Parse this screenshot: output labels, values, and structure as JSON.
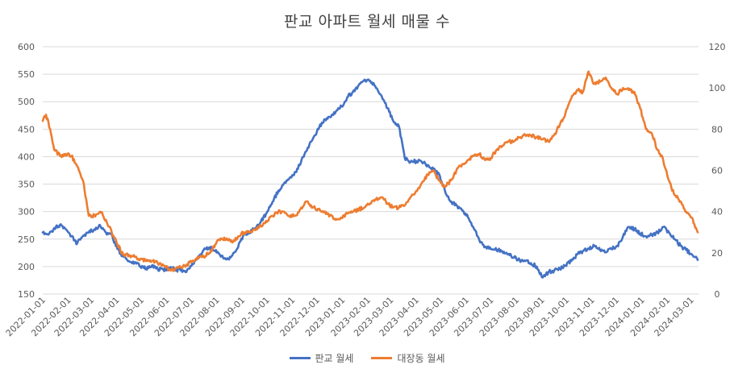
{
  "chart_data": {
    "type": "line",
    "title": "판교 아파트 월세 매물 수",
    "left_axis": {
      "min": 150,
      "max": 600,
      "step": 50,
      "ticks": [
        "150",
        "200",
        "250",
        "300",
        "350",
        "400",
        "450",
        "500",
        "550",
        "600"
      ]
    },
    "right_axis": {
      "min": 0,
      "max": 120,
      "step": 20,
      "ticks": [
        "0",
        "20",
        "40",
        "60",
        "80",
        "100",
        "120"
      ]
    },
    "x_range": [
      "2022-01-01",
      "2024-03-10"
    ],
    "x_ticks": [
      "2022-01-01",
      "2022-02-01",
      "2022-03-01",
      "2022-04-01",
      "2022-05-01",
      "2022-06-01",
      "2022-07-01",
      "2022-08-01",
      "2022-09-01",
      "2022-10-01",
      "2022-11-01",
      "2022-12-01",
      "2023-01-01",
      "2023-02-01",
      "2023-03-01",
      "2023-04-01",
      "2023-05-01",
      "2023-06-01",
      "2023-07-01",
      "2023-08-01",
      "2023-09-01",
      "2023-10-01",
      "2023-11-01",
      "2023-12-01",
      "2024-01-01",
      "2024-02-01",
      "2024-03-01"
    ],
    "grid": true,
    "legend_position": "bottom",
    "series": [
      {
        "name": "판교 월세",
        "axis": "left",
        "color": "#4472c4",
        "points": [
          [
            "2022-01-01",
            262
          ],
          [
            "2022-01-08",
            258
          ],
          [
            "2022-01-15",
            270
          ],
          [
            "2022-01-22",
            276
          ],
          [
            "2022-01-29",
            268
          ],
          [
            "2022-02-05",
            255
          ],
          [
            "2022-02-12",
            242
          ],
          [
            "2022-02-19",
            256
          ],
          [
            "2022-02-26",
            262
          ],
          [
            "2022-03-05",
            268
          ],
          [
            "2022-03-12",
            275
          ],
          [
            "2022-03-19",
            262
          ],
          [
            "2022-03-26",
            258
          ],
          [
            "2022-04-02",
            232
          ],
          [
            "2022-04-09",
            218
          ],
          [
            "2022-04-16",
            210
          ],
          [
            "2022-04-23",
            208
          ],
          [
            "2022-04-30",
            200
          ],
          [
            "2022-05-07",
            197
          ],
          [
            "2022-05-14",
            202
          ],
          [
            "2022-05-21",
            196
          ],
          [
            "2022-05-28",
            194
          ],
          [
            "2022-06-04",
            198
          ],
          [
            "2022-06-11",
            195
          ],
          [
            "2022-06-18",
            193
          ],
          [
            "2022-06-25",
            190
          ],
          [
            "2022-07-02",
            205
          ],
          [
            "2022-07-09",
            218
          ],
          [
            "2022-07-16",
            230
          ],
          [
            "2022-07-23",
            235
          ],
          [
            "2022-07-30",
            228
          ],
          [
            "2022-08-06",
            218
          ],
          [
            "2022-08-13",
            213
          ],
          [
            "2022-08-20",
            220
          ],
          [
            "2022-08-27",
            235
          ],
          [
            "2022-09-03",
            258
          ],
          [
            "2022-09-10",
            262
          ],
          [
            "2022-09-17",
            270
          ],
          [
            "2022-09-24",
            283
          ],
          [
            "2022-10-01",
            298
          ],
          [
            "2022-10-08",
            318
          ],
          [
            "2022-10-15",
            338
          ],
          [
            "2022-10-22",
            352
          ],
          [
            "2022-10-29",
            362
          ],
          [
            "2022-11-05",
            372
          ],
          [
            "2022-11-12",
            392
          ],
          [
            "2022-11-19",
            412
          ],
          [
            "2022-11-26",
            432
          ],
          [
            "2022-12-03",
            450
          ],
          [
            "2022-12-10",
            468
          ],
          [
            "2022-12-17",
            472
          ],
          [
            "2022-12-24",
            482
          ],
          [
            "2022-12-31",
            492
          ],
          [
            "2023-01-07",
            508
          ],
          [
            "2023-01-14",
            518
          ],
          [
            "2023-01-21",
            530
          ],
          [
            "2023-01-28",
            540
          ],
          [
            "2023-02-04",
            538
          ],
          [
            "2023-02-11",
            525
          ],
          [
            "2023-02-18",
            510
          ],
          [
            "2023-02-25",
            488
          ],
          [
            "2023-03-04",
            465
          ],
          [
            "2023-03-11",
            455
          ],
          [
            "2023-03-18",
            398
          ],
          [
            "2023-03-25",
            390
          ],
          [
            "2023-04-01",
            392
          ],
          [
            "2023-04-08",
            390
          ],
          [
            "2023-04-15",
            385
          ],
          [
            "2023-04-22",
            378
          ],
          [
            "2023-04-29",
            368
          ],
          [
            "2023-05-06",
            338
          ],
          [
            "2023-05-13",
            318
          ],
          [
            "2023-05-20",
            312
          ],
          [
            "2023-05-27",
            302
          ],
          [
            "2023-06-03",
            290
          ],
          [
            "2023-06-10",
            270
          ],
          [
            "2023-06-17",
            248
          ],
          [
            "2023-06-24",
            236
          ],
          [
            "2023-07-01",
            232
          ],
          [
            "2023-07-08",
            230
          ],
          [
            "2023-07-15",
            228
          ],
          [
            "2023-07-22",
            222
          ],
          [
            "2023-07-29",
            216
          ],
          [
            "2023-08-05",
            212
          ],
          [
            "2023-08-12",
            210
          ],
          [
            "2023-08-19",
            206
          ],
          [
            "2023-08-26",
            200
          ],
          [
            "2023-09-02",
            180
          ],
          [
            "2023-09-09",
            190
          ],
          [
            "2023-09-16",
            192
          ],
          [
            "2023-09-23",
            196
          ],
          [
            "2023-09-30",
            202
          ],
          [
            "2023-10-07",
            210
          ],
          [
            "2023-10-14",
            222
          ],
          [
            "2023-10-21",
            228
          ],
          [
            "2023-10-28",
            233
          ],
          [
            "2023-11-04",
            238
          ],
          [
            "2023-11-11",
            230
          ],
          [
            "2023-11-18",
            226
          ],
          [
            "2023-11-25",
            232
          ],
          [
            "2023-12-02",
            238
          ],
          [
            "2023-12-09",
            255
          ],
          [
            "2023-12-16",
            272
          ],
          [
            "2023-12-23",
            268
          ],
          [
            "2023-12-30",
            260
          ],
          [
            "2024-01-06",
            255
          ],
          [
            "2024-01-13",
            258
          ],
          [
            "2024-01-20",
            262
          ],
          [
            "2024-01-27",
            272
          ],
          [
            "2024-02-03",
            262
          ],
          [
            "2024-02-10",
            250
          ],
          [
            "2024-02-17",
            238
          ],
          [
            "2024-02-24",
            230
          ],
          [
            "2024-03-02",
            222
          ],
          [
            "2024-03-09",
            212
          ]
        ]
      },
      {
        "name": "대장동 월세",
        "axis": "right",
        "color": "#ed7d31",
        "points": [
          [
            "2022-01-01",
            84
          ],
          [
            "2022-01-05",
            87
          ],
          [
            "2022-01-10",
            80
          ],
          [
            "2022-01-15",
            70
          ],
          [
            "2022-01-22",
            67
          ],
          [
            "2022-01-29",
            68
          ],
          [
            "2022-02-05",
            67
          ],
          [
            "2022-02-12",
            62
          ],
          [
            "2022-02-19",
            55
          ],
          [
            "2022-02-26",
            38
          ],
          [
            "2022-03-05",
            38
          ],
          [
            "2022-03-12",
            40
          ],
          [
            "2022-03-19",
            36
          ],
          [
            "2022-03-26",
            30
          ],
          [
            "2022-04-02",
            24
          ],
          [
            "2022-04-09",
            19
          ],
          [
            "2022-04-16",
            19
          ],
          [
            "2022-04-23",
            18
          ],
          [
            "2022-04-30",
            17
          ],
          [
            "2022-05-07",
            16
          ],
          [
            "2022-05-14",
            16
          ],
          [
            "2022-05-21",
            15
          ],
          [
            "2022-05-28",
            14
          ],
          [
            "2022-06-04",
            12
          ],
          [
            "2022-06-11",
            12
          ],
          [
            "2022-06-18",
            13
          ],
          [
            "2022-06-25",
            14
          ],
          [
            "2022-07-02",
            16
          ],
          [
            "2022-07-09",
            18
          ],
          [
            "2022-07-16",
            18
          ],
          [
            "2022-07-23",
            20
          ],
          [
            "2022-07-30",
            24
          ],
          [
            "2022-08-06",
            27
          ],
          [
            "2022-08-13",
            27
          ],
          [
            "2022-08-20",
            25
          ],
          [
            "2022-08-27",
            28
          ],
          [
            "2022-09-03",
            30
          ],
          [
            "2022-09-10",
            30
          ],
          [
            "2022-09-17",
            31
          ],
          [
            "2022-09-24",
            33
          ],
          [
            "2022-10-01",
            35
          ],
          [
            "2022-10-08",
            38
          ],
          [
            "2022-10-15",
            40
          ],
          [
            "2022-10-22",
            40
          ],
          [
            "2022-10-29",
            38
          ],
          [
            "2022-11-05",
            38
          ],
          [
            "2022-11-12",
            42
          ],
          [
            "2022-11-19",
            45
          ],
          [
            "2022-11-26",
            42
          ],
          [
            "2022-12-03",
            41
          ],
          [
            "2022-12-10",
            40
          ],
          [
            "2022-12-17",
            38
          ],
          [
            "2022-12-24",
            36
          ],
          [
            "2022-12-31",
            37
          ],
          [
            "2023-01-07",
            39
          ],
          [
            "2023-01-14",
            40
          ],
          [
            "2023-01-21",
            41
          ],
          [
            "2023-01-28",
            42
          ],
          [
            "2023-02-04",
            44
          ],
          [
            "2023-02-11",
            46
          ],
          [
            "2023-02-18",
            47
          ],
          [
            "2023-02-25",
            44
          ],
          [
            "2023-03-04",
            42
          ],
          [
            "2023-03-11",
            42
          ],
          [
            "2023-03-18",
            43
          ],
          [
            "2023-03-25",
            47
          ],
          [
            "2023-04-01",
            50
          ],
          [
            "2023-04-08",
            54
          ],
          [
            "2023-04-15",
            58
          ],
          [
            "2023-04-22",
            60
          ],
          [
            "2023-04-29",
            55
          ],
          [
            "2023-05-06",
            52
          ],
          [
            "2023-05-13",
            55
          ],
          [
            "2023-05-20",
            60
          ],
          [
            "2023-05-27",
            63
          ],
          [
            "2023-06-03",
            65
          ],
          [
            "2023-06-10",
            67
          ],
          [
            "2023-06-17",
            68
          ],
          [
            "2023-06-24",
            65
          ],
          [
            "2023-07-01",
            66
          ],
          [
            "2023-07-08",
            70
          ],
          [
            "2023-07-15",
            72
          ],
          [
            "2023-07-22",
            74
          ],
          [
            "2023-07-29",
            74
          ],
          [
            "2023-08-05",
            76
          ],
          [
            "2023-08-12",
            77
          ],
          [
            "2023-08-19",
            77
          ],
          [
            "2023-08-26",
            76
          ],
          [
            "2023-09-02",
            75
          ],
          [
            "2023-09-09",
            74
          ],
          [
            "2023-09-16",
            77
          ],
          [
            "2023-09-23",
            82
          ],
          [
            "2023-09-30",
            88
          ],
          [
            "2023-10-07",
            95
          ],
          [
            "2023-10-14",
            99
          ],
          [
            "2023-10-21",
            98
          ],
          [
            "2023-10-28",
            108
          ],
          [
            "2023-11-04",
            102
          ],
          [
            "2023-11-11",
            103
          ],
          [
            "2023-11-18",
            105
          ],
          [
            "2023-11-25",
            100
          ],
          [
            "2023-12-02",
            97
          ],
          [
            "2023-12-09",
            100
          ],
          [
            "2023-12-16",
            99
          ],
          [
            "2023-12-23",
            98
          ],
          [
            "2023-12-30",
            90
          ],
          [
            "2024-01-06",
            80
          ],
          [
            "2024-01-13",
            78
          ],
          [
            "2024-01-20",
            70
          ],
          [
            "2024-01-27",
            65
          ],
          [
            "2024-02-03",
            55
          ],
          [
            "2024-02-10",
            48
          ],
          [
            "2024-02-17",
            45
          ],
          [
            "2024-02-24",
            40
          ],
          [
            "2024-03-02",
            37
          ],
          [
            "2024-03-09",
            30
          ]
        ]
      }
    ]
  }
}
